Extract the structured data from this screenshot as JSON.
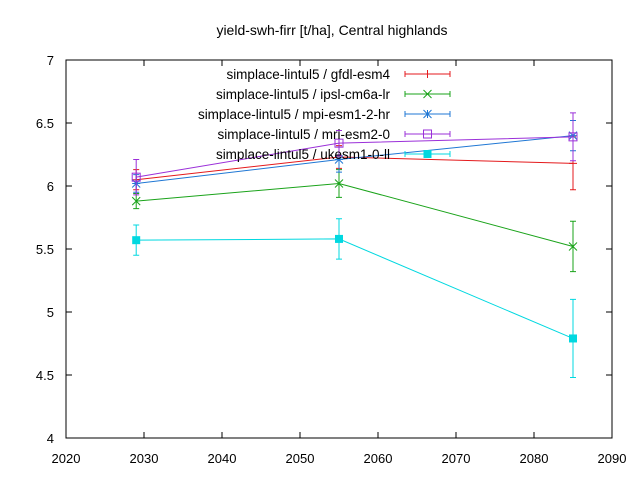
{
  "chart_data": {
    "type": "line",
    "title": "yield-swh-firr [t/ha], Central highlands",
    "xlabel": "",
    "ylabel": "",
    "xlim": [
      2020,
      2090
    ],
    "ylim": [
      4,
      7
    ],
    "xticks": [
      2020,
      2030,
      2040,
      2050,
      2060,
      2070,
      2080,
      2090
    ],
    "yticks": [
      4,
      4.5,
      5,
      5.5,
      6,
      6.5,
      7
    ],
    "ytick_labels": [
      "4",
      "4.5",
      "5",
      "5.5",
      "6",
      "6.5",
      "7"
    ],
    "grid": false,
    "legend_position": "top-right",
    "error_bars": true,
    "series": [
      {
        "name": "simplace-lintul5 / gfdl-esm4",
        "color": "#e41a1c",
        "marker": "plus",
        "x": [
          2029,
          2055,
          2085
        ],
        "y": [
          6.05,
          6.23,
          6.18
        ],
        "err": [
          0.08,
          0.09,
          0.21
        ]
      },
      {
        "name": "simplace-lintul5 / ipsl-cm6a-lr",
        "color": "#1aa31a",
        "marker": "cross",
        "x": [
          2029,
          2055,
          2085
        ],
        "y": [
          5.88,
          6.02,
          5.52
        ],
        "err": [
          0.06,
          0.11,
          0.2
        ]
      },
      {
        "name": "simplace-lintul5 / mpi-esm1-2-hr",
        "color": "#1f77d4",
        "marker": "star",
        "x": [
          2029,
          2055,
          2085
        ],
        "y": [
          6.02,
          6.21,
          6.4
        ],
        "err": [
          0.07,
          0.1,
          0.12
        ]
      },
      {
        "name": "simplace-lintul5 / mri-esm2-0",
        "color": "#9b30d9",
        "marker": "open-square",
        "x": [
          2029,
          2055,
          2085
        ],
        "y": [
          6.07,
          6.34,
          6.39
        ],
        "err": [
          0.14,
          0.1,
          0.19
        ]
      },
      {
        "name": "simplace-lintul5 / ukesm1-0-ll",
        "color": "#00d8e0",
        "marker": "filled-square",
        "x": [
          2029,
          2055,
          2085
        ],
        "y": [
          5.57,
          5.58,
          4.79
        ],
        "err": [
          0.12,
          0.16,
          0.31
        ]
      }
    ]
  }
}
